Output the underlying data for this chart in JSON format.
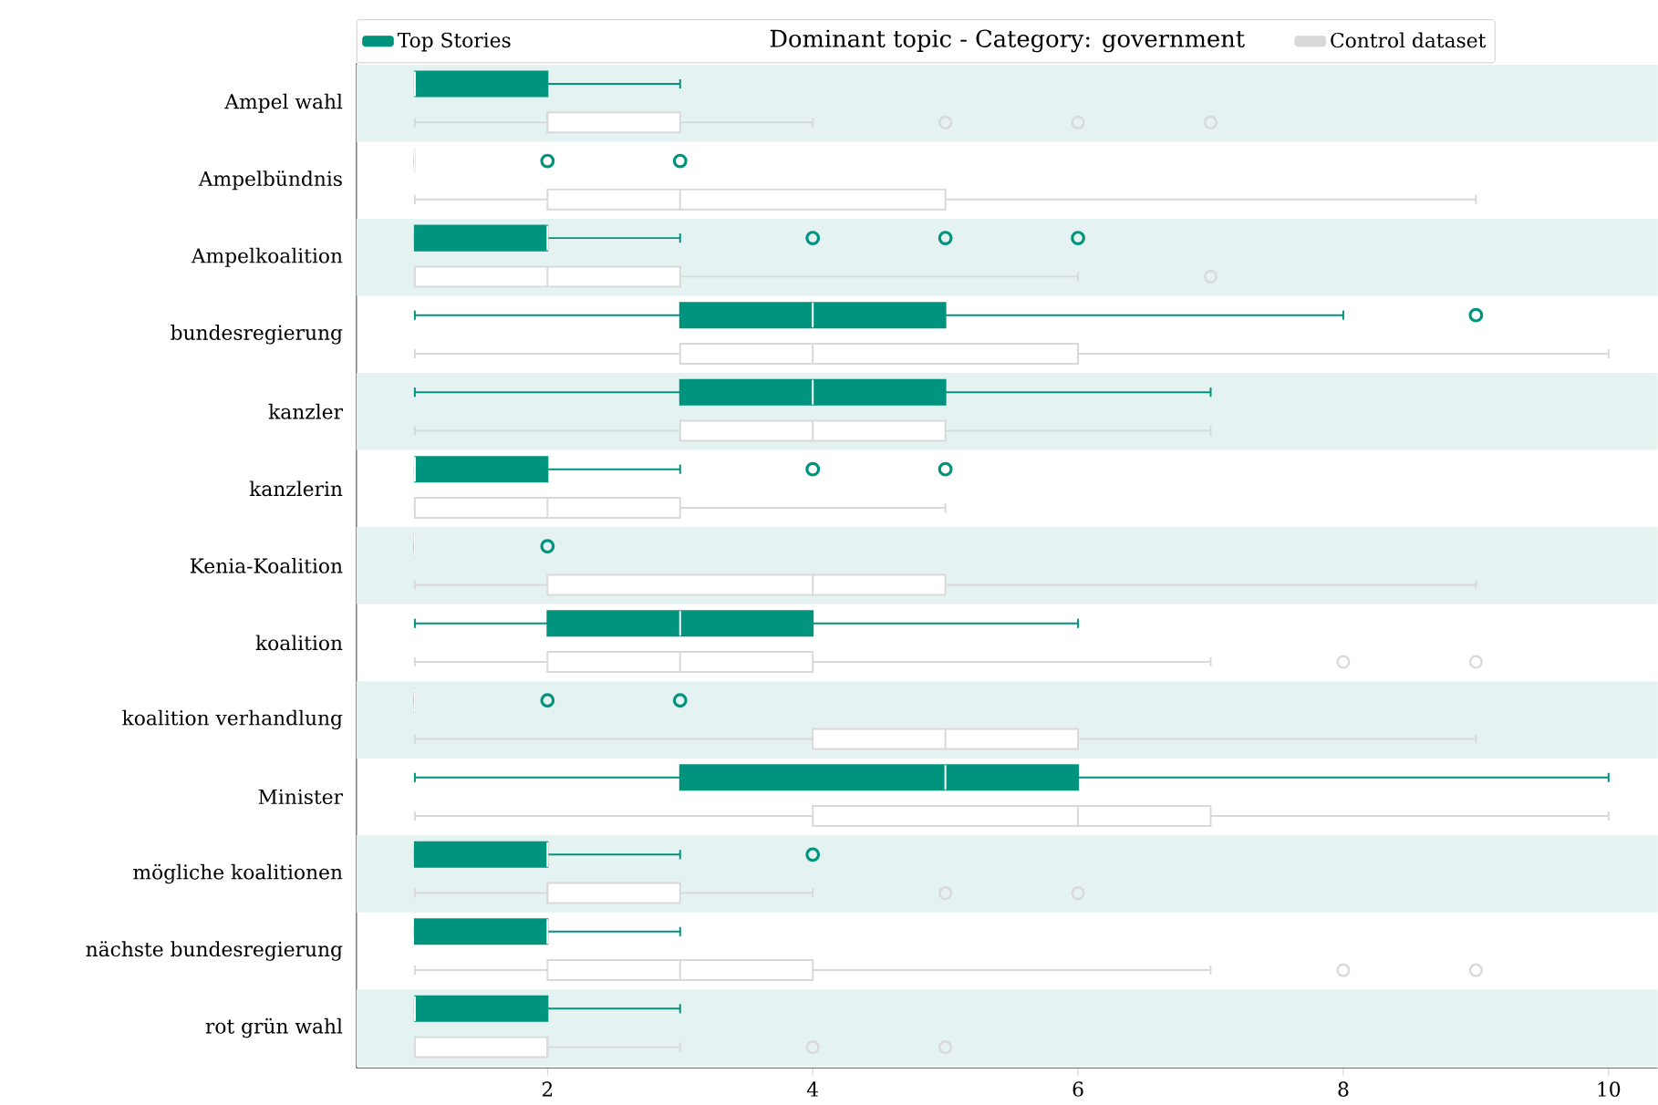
{
  "chart_data": {
    "type": "box",
    "title": "Dominant topic - Category: government",
    "orientation": "horizontal",
    "legend": "top",
    "marker": "circle",
    "grid": false,
    "categories": [
      "Ampel wahl",
      "Ampelbündnis",
      "Ampelkoalition",
      "bundesregierung",
      "kanzler",
      "kanzlerin",
      "Kenia-Koalition",
      "koalition",
      "koalition verhandlung",
      "Minister",
      "mögliche koalitionen",
      "nächste bundesregierung",
      "rot grün wahl"
    ],
    "xlim": [
      0.56,
      10.37
    ],
    "xticks": [
      2,
      4,
      6,
      8,
      10
    ],
    "bands": [
      {
        "axis": "y",
        "from": "Ampel wahl",
        "to": "Ampel wahl",
        "color": "#e4f2f1"
      },
      {
        "axis": "y",
        "from": "Ampelkoalition",
        "to": "Ampelkoalition",
        "color": "#e4f2f1"
      },
      {
        "axis": "y",
        "from": "kanzler",
        "to": "kanzler",
        "color": "#e4f2f1"
      },
      {
        "axis": "y",
        "from": "Kenia-Koalition",
        "to": "Kenia-Koalition",
        "color": "#e4f2f1"
      },
      {
        "axis": "y",
        "from": "koalition verhandlung",
        "to": "koalition verhandlung",
        "color": "#e4f2f1"
      },
      {
        "axis": "y",
        "from": "mögliche koalitionen",
        "to": "mögliche koalitionen",
        "color": "#e4f2f1"
      },
      {
        "axis": "y",
        "from": "rot grün wahl",
        "to": "rot grün wahl",
        "color": "#e4f2f1"
      }
    ],
    "series": [
      {
        "name": "Top Stories",
        "color": "#00937d",
        "boxes": [
          {
            "low": 1,
            "q1": 1,
            "median": 1,
            "q3": 2,
            "high": 3
          },
          {
            "low": 1,
            "q1": 1,
            "median": 1,
            "q3": 1,
            "high": 1,
            "outliers": [
              2,
              3
            ]
          },
          {
            "low": 1,
            "q1": 1,
            "median": 2,
            "q3": 2,
            "high": 3,
            "outliers": [
              4,
              5,
              6
            ]
          },
          {
            "low": 1,
            "q1": 3,
            "median": 4,
            "q3": 5,
            "high": 8,
            "outliers": [
              9
            ]
          },
          {
            "low": 1,
            "q1": 3,
            "median": 4,
            "q3": 5,
            "high": 7
          },
          {
            "low": 1,
            "q1": 1,
            "median": 1,
            "q3": 2,
            "high": 3,
            "outliers": [
              4,
              5
            ]
          },
          {
            "low": 1,
            "q1": 1,
            "median": 1,
            "q3": 1,
            "high": 1,
            "outliers": [
              2
            ]
          },
          {
            "low": 1,
            "q1": 2,
            "median": 3,
            "q3": 4,
            "high": 6
          },
          {
            "low": 1,
            "q1": 1,
            "median": 1,
            "q3": 1,
            "high": 1,
            "outliers": [
              2,
              3
            ]
          },
          {
            "low": 1,
            "q1": 3,
            "median": 5,
            "q3": 6,
            "high": 10
          },
          {
            "low": 1,
            "q1": 1,
            "median": 2,
            "q3": 2,
            "high": 3,
            "outliers": [
              4
            ]
          },
          {
            "low": 1,
            "q1": 1,
            "median": 2,
            "q3": 2,
            "high": 3
          },
          {
            "low": 1,
            "q1": 1,
            "median": 1,
            "q3": 2,
            "high": 3
          }
        ]
      },
      {
        "name": "Control dataset",
        "color": "#d9d9d9",
        "boxes": [
          {
            "low": 1,
            "q1": 2,
            "median": 2,
            "q3": 3,
            "high": 4,
            "outliers": [
              5,
              6,
              7
            ]
          },
          {
            "low": 1,
            "q1": 2,
            "median": 3,
            "q3": 5,
            "high": 9
          },
          {
            "low": 1,
            "q1": 1,
            "median": 2,
            "q3": 3,
            "high": 6,
            "outliers": [
              7
            ]
          },
          {
            "low": 1,
            "q1": 3,
            "median": 4,
            "q3": 6,
            "high": 10
          },
          {
            "low": 1,
            "q1": 3,
            "median": 4,
            "q3": 5,
            "high": 7
          },
          {
            "low": 1,
            "q1": 1,
            "median": 2,
            "q3": 3,
            "high": 5
          },
          {
            "low": 1,
            "q1": 2,
            "median": 4,
            "q3": 5,
            "high": 9
          },
          {
            "low": 1,
            "q1": 2,
            "median": 3,
            "q3": 4,
            "high": 7,
            "outliers": [
              8,
              9
            ]
          },
          {
            "low": 1,
            "q1": 4,
            "median": 5,
            "q3": 6,
            "high": 9
          },
          {
            "low": 1,
            "q1": 4,
            "median": 6,
            "q3": 7,
            "high": 10
          },
          {
            "low": 1,
            "q1": 2,
            "median": 2,
            "q3": 3,
            "high": 4,
            "outliers": [
              5,
              6
            ]
          },
          {
            "low": 1,
            "q1": 2,
            "median": 3,
            "q3": 4,
            "high": 7,
            "outliers": [
              8,
              9
            ]
          },
          {
            "low": 1,
            "q1": 1,
            "median": 2,
            "q3": 2,
            "high": 3,
            "outliers": [
              4,
              5
            ]
          }
        ]
      }
    ]
  }
}
